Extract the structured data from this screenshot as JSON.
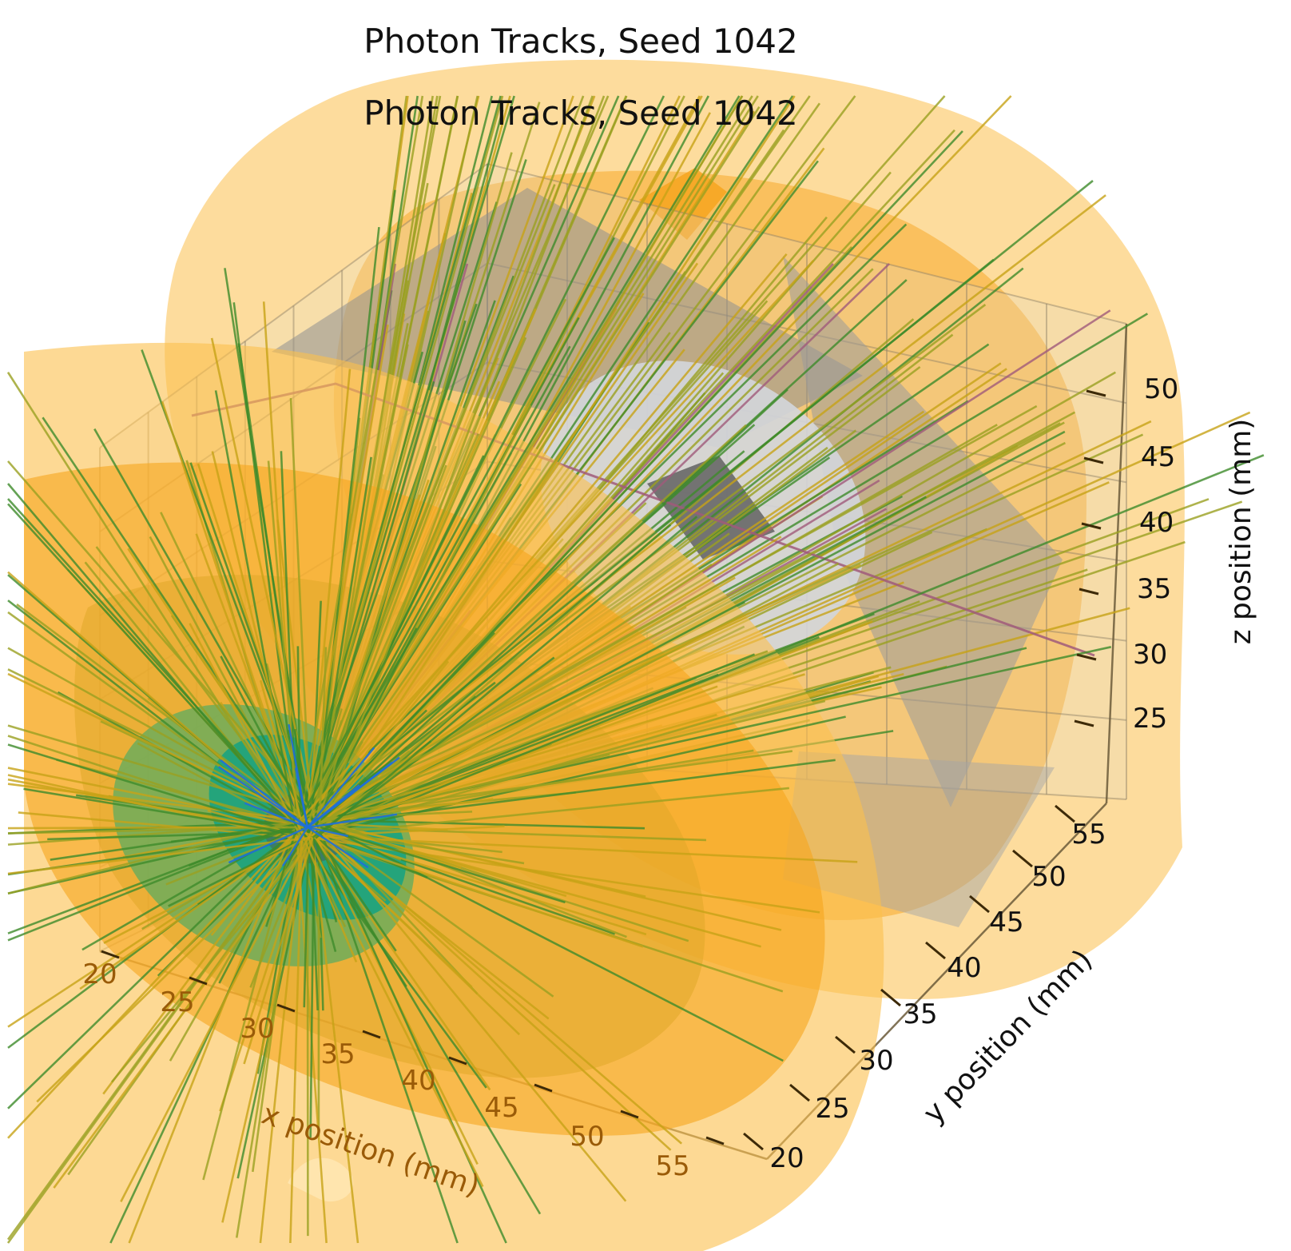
{
  "chart_data": {
    "type": "scatter",
    "subtype": "3d-photon-tracks",
    "titles": [
      "Photon Tracks, Seed 1042",
      "Photon Tracks, Seed 1042"
    ],
    "xlabel": "x position (mm)",
    "ylabel": "y position (mm)",
    "zlabel": "z position (mm)",
    "x_ticks": [
      "20",
      "25",
      "30",
      "35",
      "40",
      "45",
      "50",
      "55"
    ],
    "y_ticks": [
      "20",
      "25",
      "30",
      "35",
      "40",
      "45",
      "50",
      "55"
    ],
    "z_ticks": [
      "25",
      "30",
      "35",
      "40",
      "45",
      "50"
    ],
    "xlim": [
      17,
      58
    ],
    "ylim": [
      17,
      58
    ],
    "zlim": [
      22,
      53
    ],
    "grid": true,
    "legend": "none",
    "source_point": {
      "x": 36,
      "y": 36,
      "z": 30
    },
    "track_count": 420,
    "colors": {
      "shell": "#fbbf4d",
      "shell_dark": "#f6a21a",
      "inner_gray": "#a9a9a9",
      "sphere_light": "#cfd3d8",
      "core_teal": "#1aa37f",
      "core_blue": "#1e6fd9",
      "track_green": "#3d8b2a",
      "track_olive": "#9aa020",
      "track_yellow": "#c7a317",
      "track_mauve": "#a05a7a",
      "axis_dark": "#4a3410",
      "axis_text_far": "#111111",
      "axis_text_near": "#9a5b08"
    }
  }
}
